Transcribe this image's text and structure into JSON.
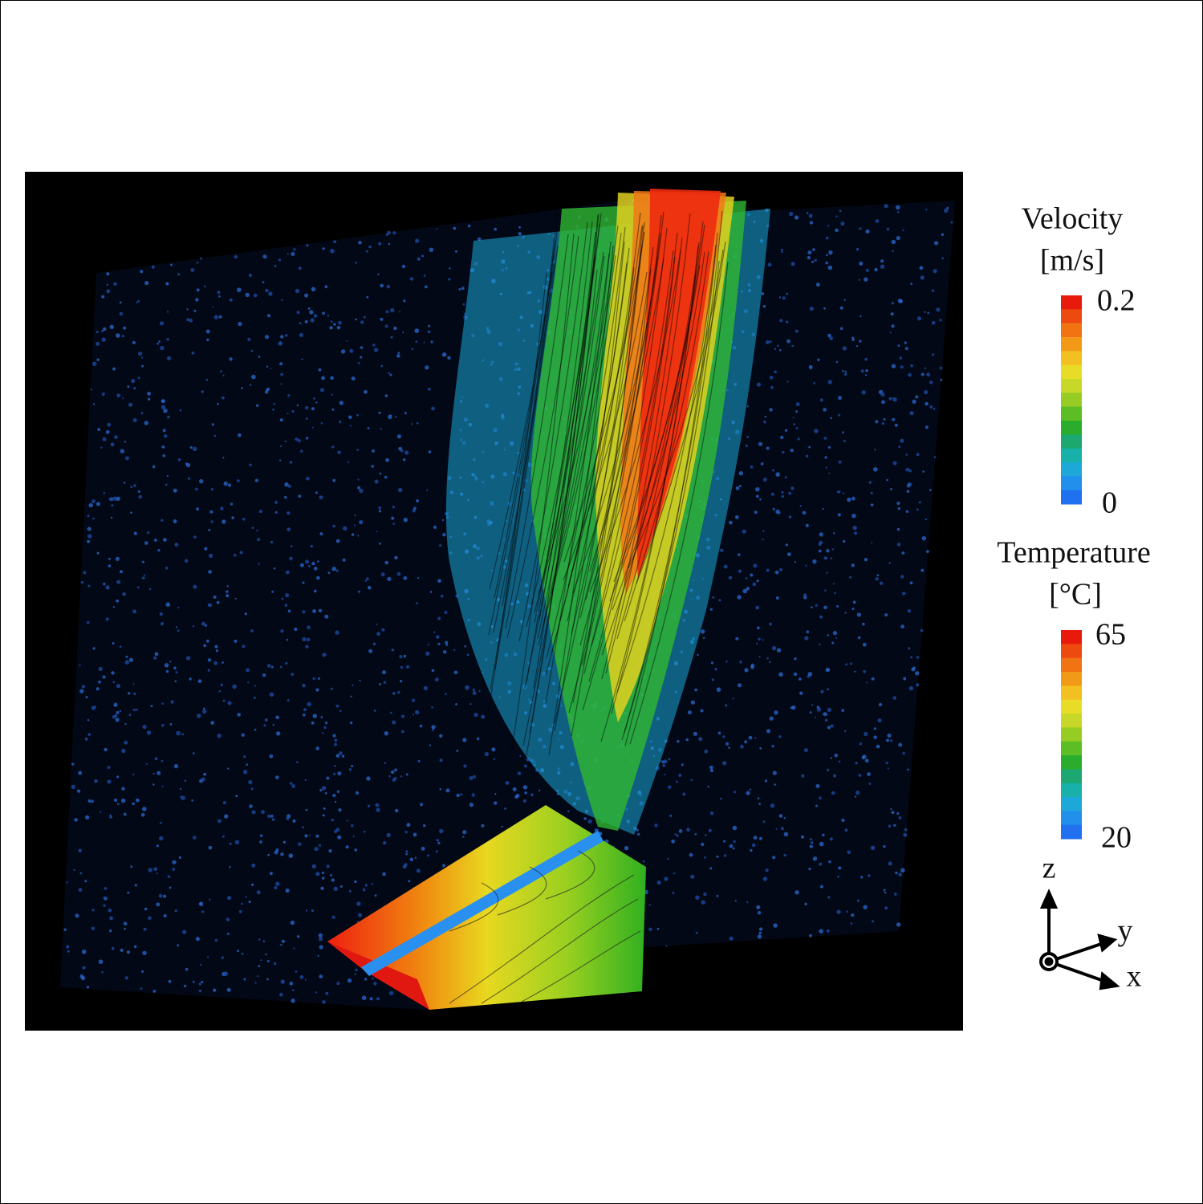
{
  "velocity_legend": {
    "title": "Velocity",
    "unit": "[m/s]",
    "max": 0.2,
    "min": 0
  },
  "temperature_legend": {
    "title": "Temperature",
    "unit": "[°C]",
    "max": 65,
    "min": 20
  },
  "axes": {
    "z": "z",
    "y": "y",
    "x": "x"
  }
}
